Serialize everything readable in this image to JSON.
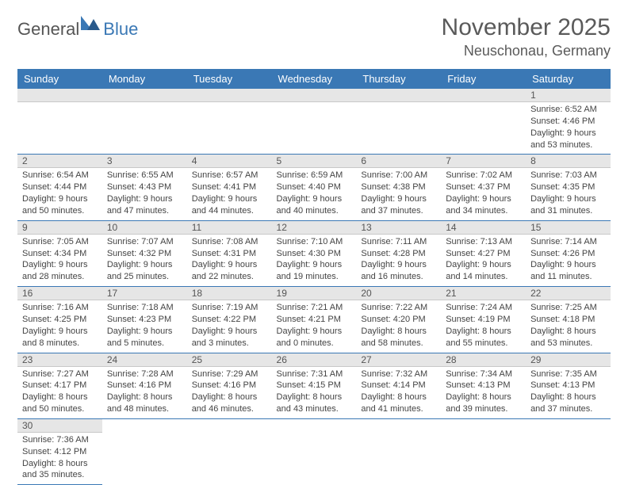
{
  "logo": {
    "part1": "General",
    "part2": "Blue"
  },
  "colors": {
    "header_bg": "#3a78b5",
    "row_divider": "#3a78b5",
    "daynum_bg": "#e6e6e6",
    "daynum_border": "#c8c8c8",
    "text": "#444444",
    "title": "#5a5a5a"
  },
  "title": "November 2025",
  "location": "Neuschonau, Germany",
  "day_headers": [
    "Sunday",
    "Monday",
    "Tuesday",
    "Wednesday",
    "Thursday",
    "Friday",
    "Saturday"
  ],
  "weeks": [
    [
      null,
      null,
      null,
      null,
      null,
      null,
      {
        "n": "1",
        "sr": "Sunrise: 6:52 AM",
        "ss": "Sunset: 4:46 PM",
        "dl": "Daylight: 9 hours and 53 minutes."
      }
    ],
    [
      {
        "n": "2",
        "sr": "Sunrise: 6:54 AM",
        "ss": "Sunset: 4:44 PM",
        "dl": "Daylight: 9 hours and 50 minutes."
      },
      {
        "n": "3",
        "sr": "Sunrise: 6:55 AM",
        "ss": "Sunset: 4:43 PM",
        "dl": "Daylight: 9 hours and 47 minutes."
      },
      {
        "n": "4",
        "sr": "Sunrise: 6:57 AM",
        "ss": "Sunset: 4:41 PM",
        "dl": "Daylight: 9 hours and 44 minutes."
      },
      {
        "n": "5",
        "sr": "Sunrise: 6:59 AM",
        "ss": "Sunset: 4:40 PM",
        "dl": "Daylight: 9 hours and 40 minutes."
      },
      {
        "n": "6",
        "sr": "Sunrise: 7:00 AM",
        "ss": "Sunset: 4:38 PM",
        "dl": "Daylight: 9 hours and 37 minutes."
      },
      {
        "n": "7",
        "sr": "Sunrise: 7:02 AM",
        "ss": "Sunset: 4:37 PM",
        "dl": "Daylight: 9 hours and 34 minutes."
      },
      {
        "n": "8",
        "sr": "Sunrise: 7:03 AM",
        "ss": "Sunset: 4:35 PM",
        "dl": "Daylight: 9 hours and 31 minutes."
      }
    ],
    [
      {
        "n": "9",
        "sr": "Sunrise: 7:05 AM",
        "ss": "Sunset: 4:34 PM",
        "dl": "Daylight: 9 hours and 28 minutes."
      },
      {
        "n": "10",
        "sr": "Sunrise: 7:07 AM",
        "ss": "Sunset: 4:32 PM",
        "dl": "Daylight: 9 hours and 25 minutes."
      },
      {
        "n": "11",
        "sr": "Sunrise: 7:08 AM",
        "ss": "Sunset: 4:31 PM",
        "dl": "Daylight: 9 hours and 22 minutes."
      },
      {
        "n": "12",
        "sr": "Sunrise: 7:10 AM",
        "ss": "Sunset: 4:30 PM",
        "dl": "Daylight: 9 hours and 19 minutes."
      },
      {
        "n": "13",
        "sr": "Sunrise: 7:11 AM",
        "ss": "Sunset: 4:28 PM",
        "dl": "Daylight: 9 hours and 16 minutes."
      },
      {
        "n": "14",
        "sr": "Sunrise: 7:13 AM",
        "ss": "Sunset: 4:27 PM",
        "dl": "Daylight: 9 hours and 14 minutes."
      },
      {
        "n": "15",
        "sr": "Sunrise: 7:14 AM",
        "ss": "Sunset: 4:26 PM",
        "dl": "Daylight: 9 hours and 11 minutes."
      }
    ],
    [
      {
        "n": "16",
        "sr": "Sunrise: 7:16 AM",
        "ss": "Sunset: 4:25 PM",
        "dl": "Daylight: 9 hours and 8 minutes."
      },
      {
        "n": "17",
        "sr": "Sunrise: 7:18 AM",
        "ss": "Sunset: 4:23 PM",
        "dl": "Daylight: 9 hours and 5 minutes."
      },
      {
        "n": "18",
        "sr": "Sunrise: 7:19 AM",
        "ss": "Sunset: 4:22 PM",
        "dl": "Daylight: 9 hours and 3 minutes."
      },
      {
        "n": "19",
        "sr": "Sunrise: 7:21 AM",
        "ss": "Sunset: 4:21 PM",
        "dl": "Daylight: 9 hours and 0 minutes."
      },
      {
        "n": "20",
        "sr": "Sunrise: 7:22 AM",
        "ss": "Sunset: 4:20 PM",
        "dl": "Daylight: 8 hours and 58 minutes."
      },
      {
        "n": "21",
        "sr": "Sunrise: 7:24 AM",
        "ss": "Sunset: 4:19 PM",
        "dl": "Daylight: 8 hours and 55 minutes."
      },
      {
        "n": "22",
        "sr": "Sunrise: 7:25 AM",
        "ss": "Sunset: 4:18 PM",
        "dl": "Daylight: 8 hours and 53 minutes."
      }
    ],
    [
      {
        "n": "23",
        "sr": "Sunrise: 7:27 AM",
        "ss": "Sunset: 4:17 PM",
        "dl": "Daylight: 8 hours and 50 minutes."
      },
      {
        "n": "24",
        "sr": "Sunrise: 7:28 AM",
        "ss": "Sunset: 4:16 PM",
        "dl": "Daylight: 8 hours and 48 minutes."
      },
      {
        "n": "25",
        "sr": "Sunrise: 7:29 AM",
        "ss": "Sunset: 4:16 PM",
        "dl": "Daylight: 8 hours and 46 minutes."
      },
      {
        "n": "26",
        "sr": "Sunrise: 7:31 AM",
        "ss": "Sunset: 4:15 PM",
        "dl": "Daylight: 8 hours and 43 minutes."
      },
      {
        "n": "27",
        "sr": "Sunrise: 7:32 AM",
        "ss": "Sunset: 4:14 PM",
        "dl": "Daylight: 8 hours and 41 minutes."
      },
      {
        "n": "28",
        "sr": "Sunrise: 7:34 AM",
        "ss": "Sunset: 4:13 PM",
        "dl": "Daylight: 8 hours and 39 minutes."
      },
      {
        "n": "29",
        "sr": "Sunrise: 7:35 AM",
        "ss": "Sunset: 4:13 PM",
        "dl": "Daylight: 8 hours and 37 minutes."
      }
    ],
    [
      {
        "n": "30",
        "sr": "Sunrise: 7:36 AM",
        "ss": "Sunset: 4:12 PM",
        "dl": "Daylight: 8 hours and 35 minutes."
      },
      null,
      null,
      null,
      null,
      null,
      null
    ]
  ]
}
